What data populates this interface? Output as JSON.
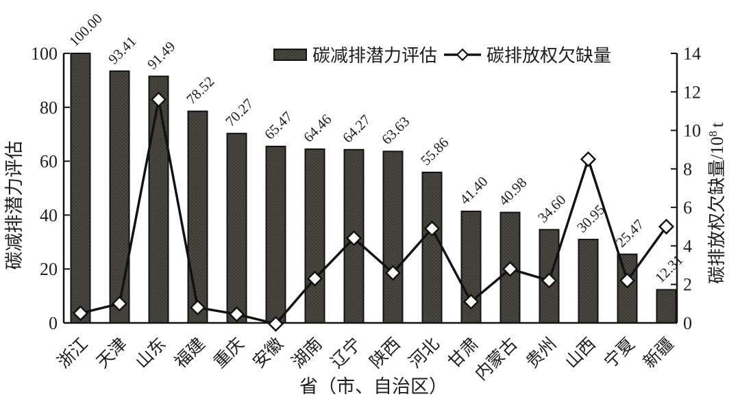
{
  "colors": {
    "bar_base": "#49463f",
    "bar_dot": "#2d2b26",
    "stroke": "#121212",
    "line": "#121212",
    "marker_fill": "#ffffff",
    "text": "#1c1c1c"
  },
  "chart_data": {
    "type": "bar+line",
    "title": "",
    "xlabel": "省（市、自治区）",
    "categories": [
      "浙江",
      "天津",
      "山东",
      "福建",
      "重庆",
      "安徽",
      "湖南",
      "辽宁",
      "陕西",
      "河北",
      "甘肃",
      "内蒙古",
      "贵州",
      "山西",
      "宁夏",
      "新疆"
    ],
    "series": [
      {
        "name": "碳减排潜力评估",
        "type": "bar",
        "yaxis": "left",
        "values": [
          100.0,
          93.41,
          91.49,
          78.52,
          70.27,
          65.47,
          64.46,
          64.27,
          63.63,
          55.86,
          41.4,
          40.98,
          34.6,
          30.95,
          25.47,
          12.31
        ],
        "value_labels": [
          "100.00",
          "93.41",
          "91.49",
          "78.52",
          "70.27",
          "65.47",
          "64.46",
          "64.27",
          "63.63",
          "55.86",
          "41.40",
          "40.98",
          "34.60",
          "30.95",
          "25.47",
          "12.31"
        ]
      },
      {
        "name": "碳排放权欠缺量",
        "type": "line",
        "yaxis": "right",
        "values": [
          0.5,
          1.0,
          11.6,
          0.8,
          0.45,
          -0.05,
          2.3,
          4.4,
          2.6,
          4.9,
          1.1,
          2.8,
          2.2,
          8.5,
          2.2,
          5.0
        ]
      }
    ],
    "left_axis": {
      "label": "碳减排潜力评估",
      "min": 0,
      "max": 100,
      "step": 20,
      "ticks": [
        "0",
        "20",
        "40",
        "60",
        "80",
        "100"
      ]
    },
    "right_axis": {
      "label_prefix": "碳排放权欠缺量/10",
      "label_sup": "8",
      "label_suffix": "t",
      "min": 0,
      "max": 14,
      "step": 2,
      "ticks": [
        "0",
        "2",
        "4",
        "6",
        "8",
        "10",
        "12",
        "14"
      ]
    },
    "legend_position": "top",
    "grid": false
  }
}
